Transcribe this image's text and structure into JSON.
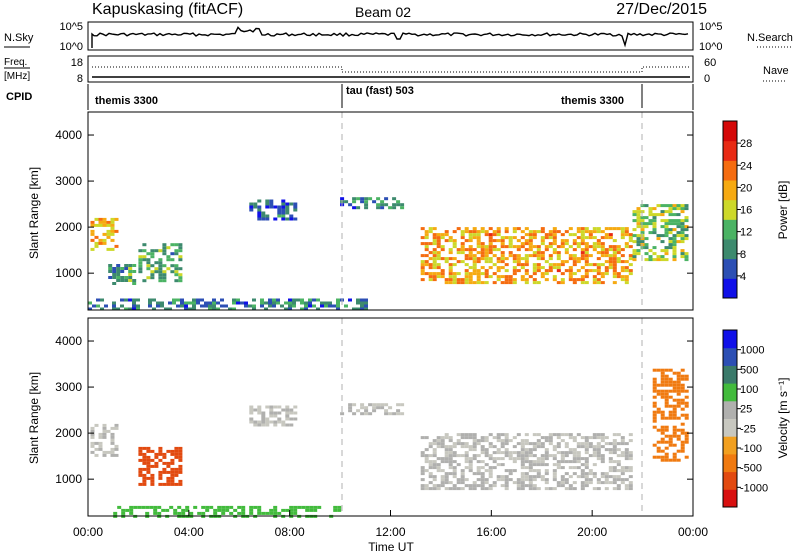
{
  "header": {
    "station": "Kapuskasing (fitACF)",
    "beam": "Beam 02",
    "date": "27/Dec/2015"
  },
  "top_panels": {
    "nsky_label": "N.Sky",
    "nsky_ticks": [
      "10^5",
      "10^0"
    ],
    "nsearch_label": "N.Search",
    "freq_label": "Freq.",
    "freq_unit": "[MHz]",
    "freq_ticks": [
      "18",
      "8"
    ],
    "nave_ticks": [
      "60",
      "0"
    ],
    "nave_label": "Nave",
    "cpid_label": "CPID",
    "cpid_segments": [
      {
        "label": "themis 3300",
        "start": 0.0,
        "end": 10.0
      },
      {
        "label": "tau (fast) 503",
        "start": 10.0,
        "end": 22.0
      },
      {
        "label": "themis 3300",
        "start": 22.0,
        "end": 24.0
      }
    ]
  },
  "colors": {
    "power": [
      "#1010e8",
      "#2c4fb4",
      "#3d8a6e",
      "#4bb364",
      "#cdd82a",
      "#f6aa12",
      "#f56c10",
      "#e82a14",
      "#d40808"
    ],
    "velocity": [
      "#1010e8",
      "#2c4fb4",
      "#3a7a6a",
      "#42bb3c",
      "#b0b0ae",
      "#c8c8c0",
      "#f2a020",
      "#f07a10",
      "#e24a10",
      "#d81010"
    ]
  },
  "chart_data": [
    {
      "type": "heatmap",
      "name": "power",
      "ylabel": "Slant Range [km]",
      "xlim": [
        0,
        24
      ],
      "ylim": [
        200,
        4500
      ],
      "yticks": [
        1000,
        2000,
        3000,
        4000
      ],
      "colorbar": {
        "label": "Power [dB]",
        "range": [
          0,
          32
        ],
        "ticks": [
          "28",
          "24",
          "20",
          "16",
          "12",
          "8",
          "4"
        ]
      },
      "cpid_change_times": [
        10.0,
        22.0
      ],
      "regions": [
        {
          "t_start": 0.1,
          "t_end": 1.1,
          "r_low": 1500,
          "r_high": 2200,
          "value": 20
        },
        {
          "t_start": 0.8,
          "t_end": 1.9,
          "r_low": 800,
          "r_high": 1200,
          "value": 10
        },
        {
          "t_start": 2.0,
          "t_end": 3.7,
          "r_low": 850,
          "r_high": 1650,
          "value": 12
        },
        {
          "t_start": 6.4,
          "t_end": 8.2,
          "r_low": 2150,
          "r_high": 2600,
          "value": 6
        },
        {
          "t_start": 10.0,
          "t_end": 12.5,
          "r_low": 2400,
          "r_high": 2650,
          "value": 7
        },
        {
          "t_start": 13.2,
          "t_end": 21.6,
          "r_low": 800,
          "r_high": 2000,
          "value": 20
        },
        {
          "t_start": 21.6,
          "t_end": 23.8,
          "r_low": 1300,
          "r_high": 2500,
          "value": 14
        },
        {
          "t_start": 0.0,
          "t_end": 11.0,
          "r_low": 200,
          "r_high": 450,
          "value": 8
        }
      ]
    },
    {
      "type": "heatmap",
      "name": "velocity",
      "ylabel": "Slant Range [km]",
      "xlabel": "Time UT",
      "xlim": [
        0,
        24
      ],
      "ylim": [
        200,
        4500
      ],
      "xticks": [
        "00:00",
        "04:00",
        "08:00",
        "12:00",
        "16:00",
        "20:00",
        "00:00"
      ],
      "yticks": [
        1000,
        2000,
        3000,
        4000
      ],
      "colorbar": {
        "label": "Velocity [m s⁻¹]",
        "ticks": [
          "1000",
          "500",
          "100",
          "25",
          "-25",
          "-100",
          "-500",
          "-1000"
        ]
      },
      "regions": [
        {
          "t_start": 0.1,
          "t_end": 1.1,
          "r_low": 1500,
          "r_high": 2200,
          "value": 0
        },
        {
          "t_start": 2.0,
          "t_end": 3.7,
          "r_low": 900,
          "r_high": 1700,
          "value": -600
        },
        {
          "t_start": 6.4,
          "t_end": 8.2,
          "r_low": 2150,
          "r_high": 2600,
          "value": 0
        },
        {
          "t_start": 10.0,
          "t_end": 12.5,
          "r_low": 2400,
          "r_high": 2650,
          "value": 0
        },
        {
          "t_start": 13.2,
          "t_end": 21.6,
          "r_low": 800,
          "r_high": 2000,
          "value": 0
        },
        {
          "t_start": 22.4,
          "t_end": 23.8,
          "r_low": 1400,
          "r_high": 3400,
          "value": -250
        },
        {
          "t_start": 1.0,
          "t_end": 10.0,
          "r_low": 200,
          "r_high": 420,
          "value": 80
        }
      ]
    }
  ]
}
